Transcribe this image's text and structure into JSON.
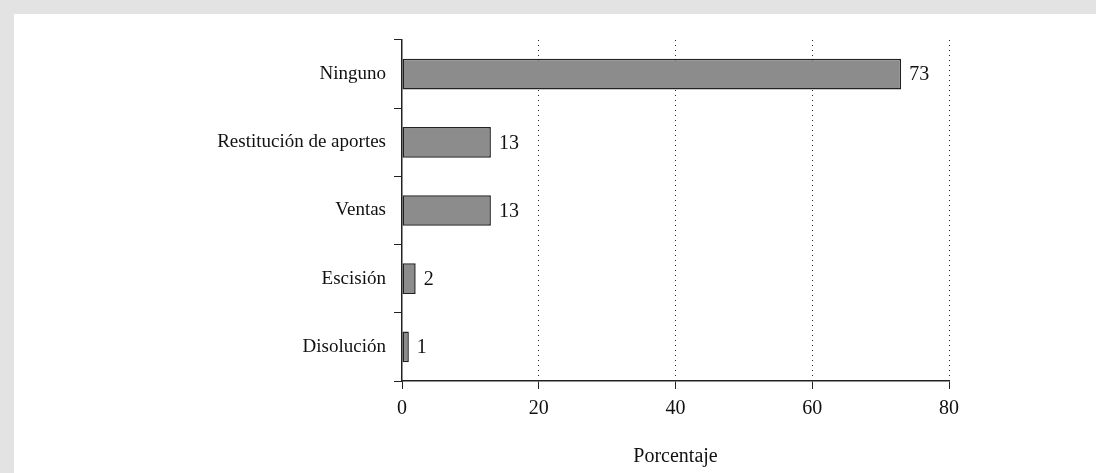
{
  "chart_data": {
    "type": "bar",
    "orientation": "horizontal",
    "xlabel": "Porcentaje",
    "categories": [
      "Ninguno",
      "Restitución de aportes",
      "Ventas",
      "Escisión",
      "Disolución"
    ],
    "values": [
      73,
      13,
      13,
      2,
      1
    ],
    "color": "#8c8c8c",
    "data_labels": true,
    "xlim": [
      0,
      80
    ],
    "xticks": [
      0,
      20,
      40,
      60,
      80
    ],
    "grid": "x",
    "legend": false
  }
}
